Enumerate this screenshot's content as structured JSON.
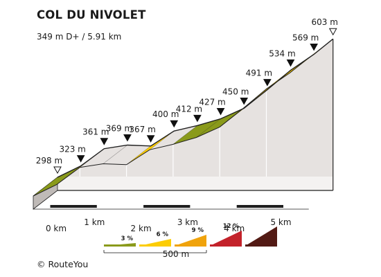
{
  "title": "COL DU NIVOLET",
  "subtitle": "349 m D+ / 5.91 km",
  "credit": "© RouteYou",
  "chart_data": {
    "type": "area",
    "title": "COL DU NIVOLET",
    "subtitle": "349 m D+ / 5.91 km",
    "x_unit": "km",
    "y_unit": "m",
    "x_ticks": [
      0,
      1,
      2,
      3,
      4,
      5
    ],
    "x_tick_labels": [
      "0 km",
      "1 km",
      "2 km",
      "3 km",
      "4 km",
      "5 km"
    ],
    "elevation_points": [
      {
        "km": 0.0,
        "elevation": 298,
        "label": "298 m",
        "marker": "start"
      },
      {
        "km": 0.5,
        "elevation": 323,
        "label": "323 m"
      },
      {
        "km": 1.0,
        "elevation": 361,
        "label": "361 m"
      },
      {
        "km": 1.5,
        "elevation": 369,
        "label": "369 m"
      },
      {
        "km": 2.0,
        "elevation": 367,
        "label": "367 m"
      },
      {
        "km": 2.5,
        "elevation": 400,
        "label": "400 m"
      },
      {
        "km": 3.0,
        "elevation": 412,
        "label": "412 m"
      },
      {
        "km": 3.5,
        "elevation": 427,
        "label": "427 m"
      },
      {
        "km": 4.0,
        "elevation": 450,
        "label": "450 m"
      },
      {
        "km": 4.5,
        "elevation": 491,
        "label": "491 m"
      },
      {
        "km": 5.0,
        "elevation": 534,
        "label": "534 m"
      },
      {
        "km": 5.5,
        "elevation": 569,
        "label": "569 m"
      },
      {
        "km": 5.91,
        "elevation": 603,
        "label": "603 m",
        "marker": "end"
      }
    ],
    "legend": {
      "scale_label": "500 m",
      "entries": [
        {
          "label": "3 %",
          "color": "#8a9a1b"
        },
        {
          "label": "6 %",
          "color": "#fccd05"
        },
        {
          "label": "9 %",
          "color": "#f0a30c"
        },
        {
          "label": "12 %",
          "color": "#c3222a"
        },
        {
          "label": "",
          "color": "#521a14"
        }
      ]
    },
    "colors": {
      "side_face": "#e6e2e0",
      "base_edge": "#1f1f1f",
      "outline": "#1f1f1f"
    }
  }
}
